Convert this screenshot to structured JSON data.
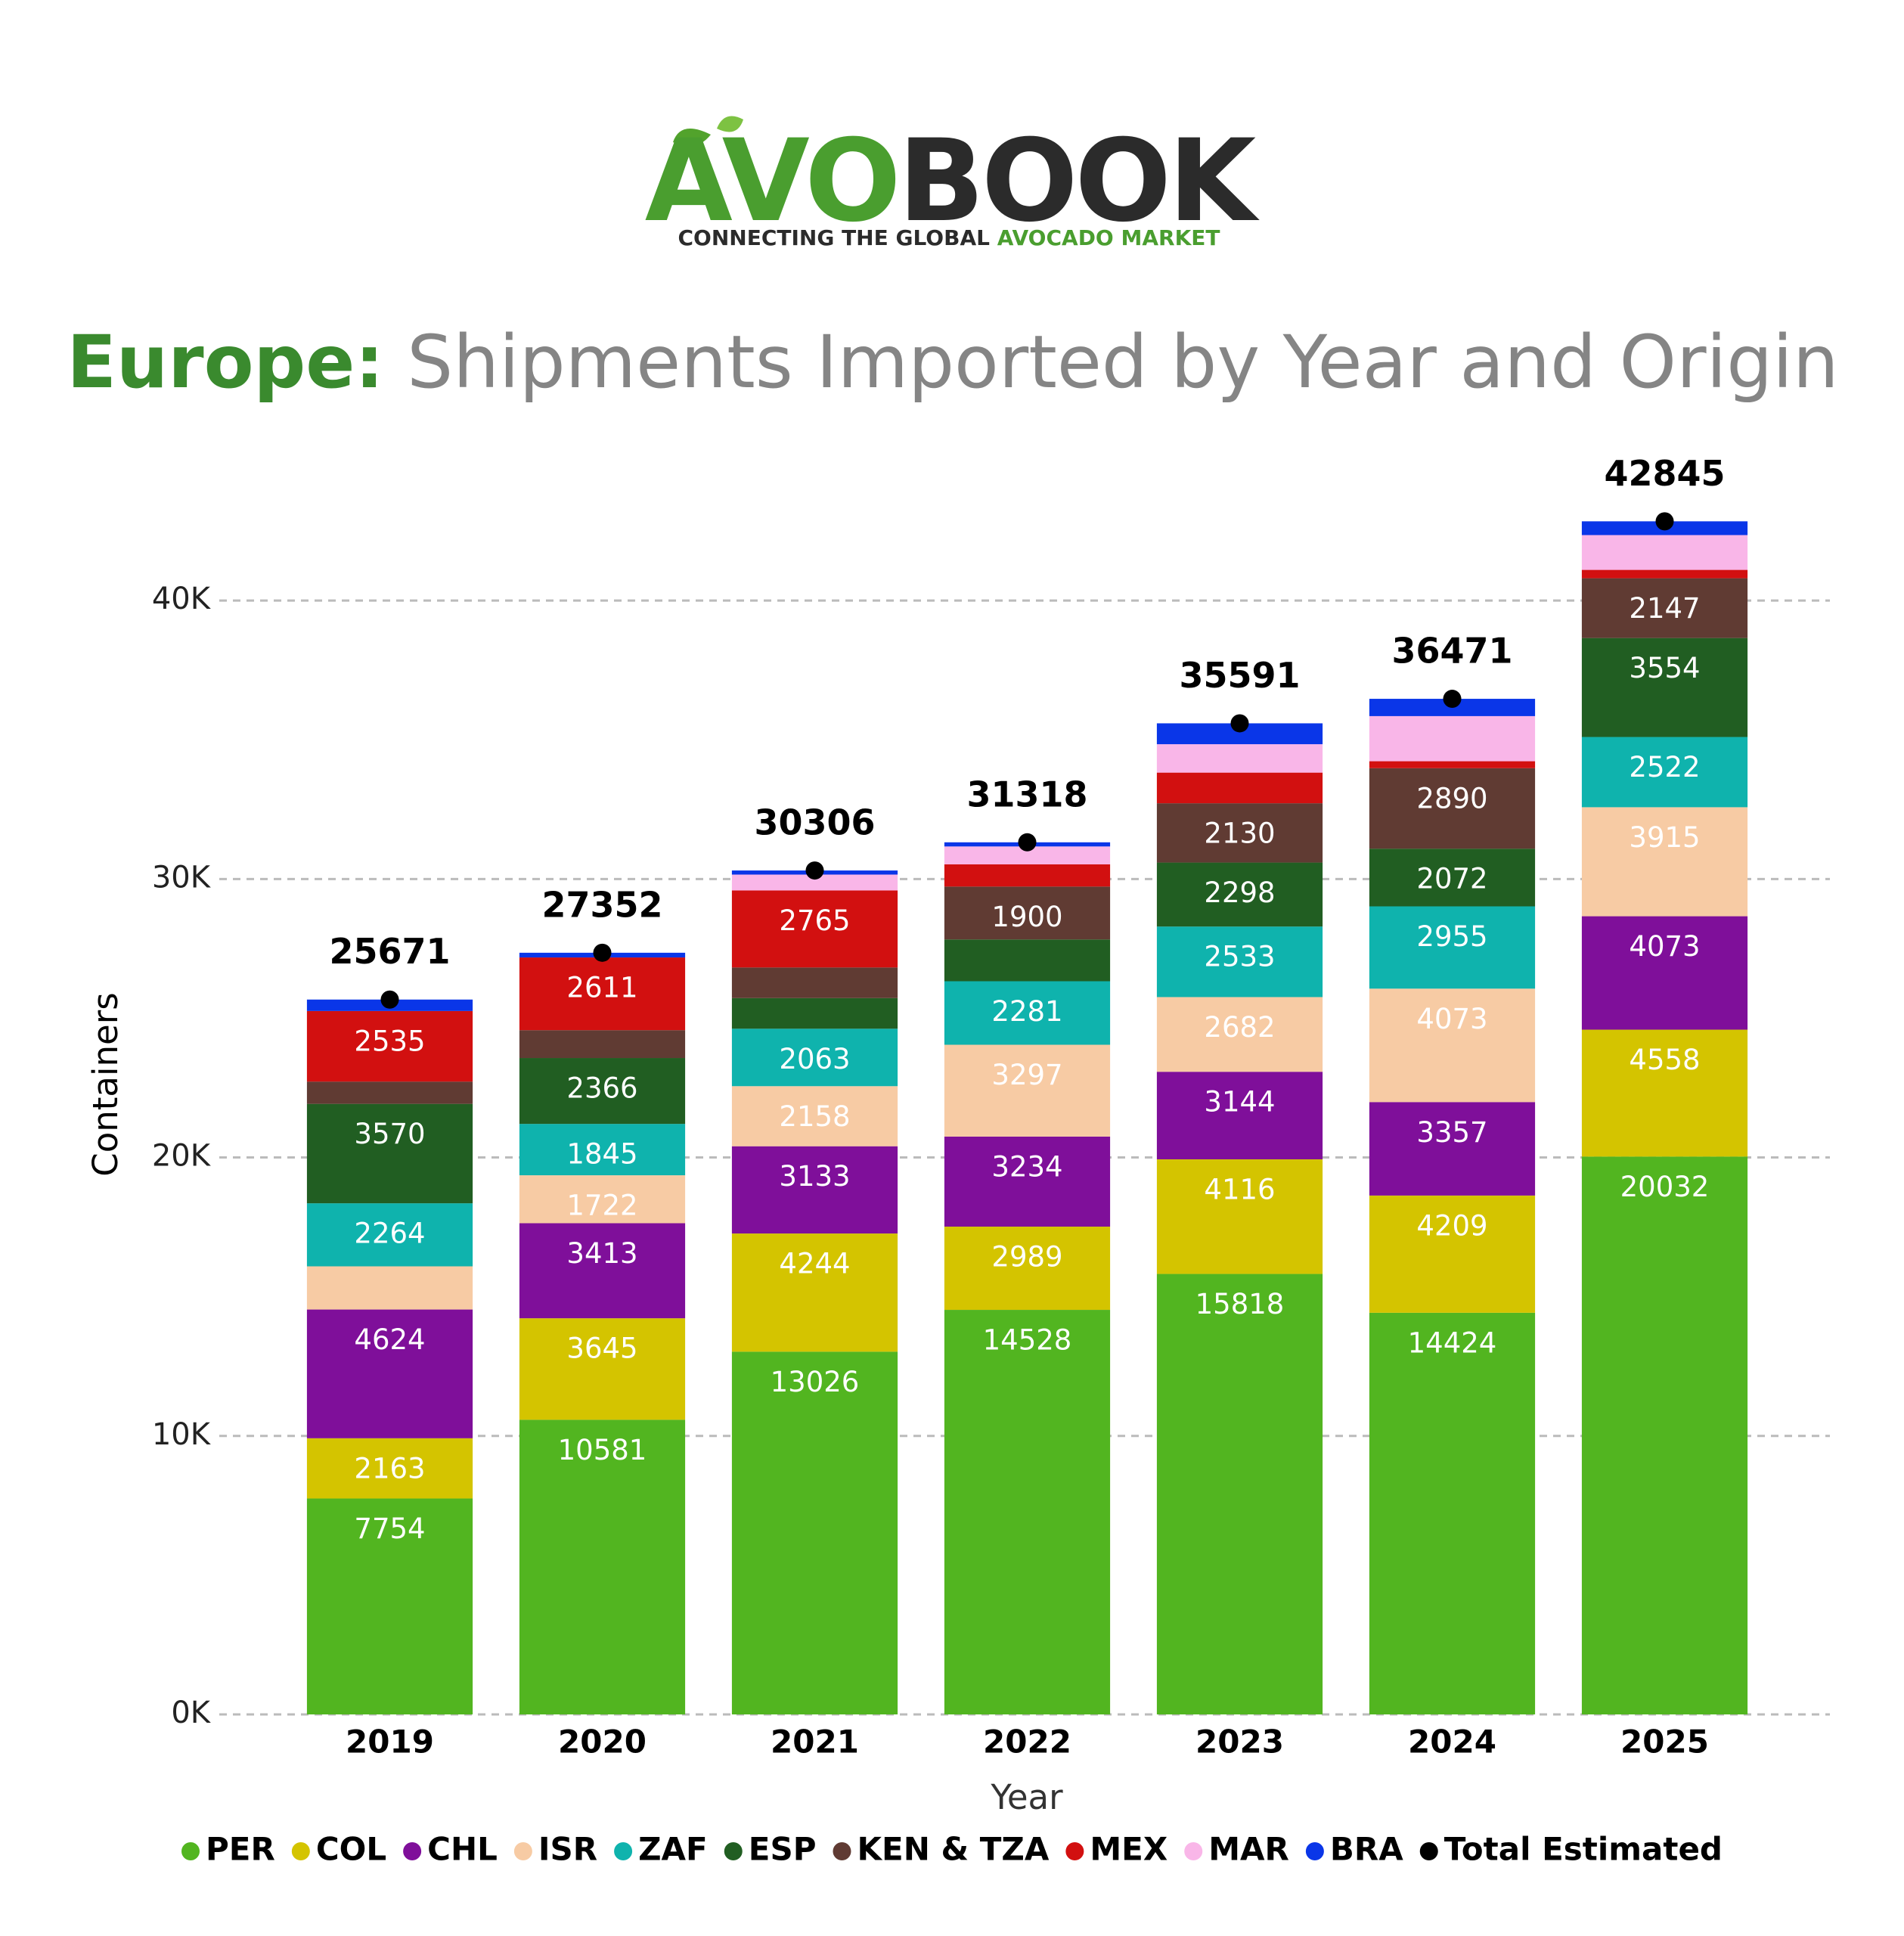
{
  "logo": {
    "brand_a": "AVO",
    "brand_b": "BOOK",
    "tagline_a": "CONNECTING THE GLOBAL",
    "tagline_b": "AVOCADO MARKET"
  },
  "chart_data": {
    "type": "stacked_bar",
    "title": {
      "highlight": "Europe:",
      "text": "Shipments Imported by Year and Origin"
    },
    "x_label": "Year",
    "y_label": "Containers",
    "categories": [
      "2019",
      "2020",
      "2021",
      "2022",
      "2023",
      "2024",
      "2025"
    ],
    "ylim": [
      0,
      45000
    ],
    "yticks": [
      {
        "value": 0,
        "label": "0K"
      },
      {
        "value": 10000,
        "label": "10K"
      },
      {
        "value": 20000,
        "label": "20K"
      },
      {
        "value": 30000,
        "label": "30K"
      },
      {
        "value": 40000,
        "label": "40K"
      }
    ],
    "grid": true,
    "series": [
      {
        "name": "PER",
        "color": "#52b520",
        "values": [
          7754,
          10581,
          13026,
          14528,
          15818,
          14424,
          20032
        ]
      },
      {
        "name": "COL",
        "color": "#d4c400",
        "values": [
          2163,
          3645,
          4244,
          2989,
          4116,
          4209,
          4558
        ]
      },
      {
        "name": "CHL",
        "color": "#7f0f9a",
        "values": [
          4624,
          3413,
          3133,
          3234,
          3144,
          3357,
          4073
        ]
      },
      {
        "name": "ISR",
        "color": "#f7cba4",
        "values": [
          1550,
          1722,
          2158,
          3297,
          2682,
          4073,
          3915
        ]
      },
      {
        "name": "ZAF",
        "color": "#0fb3ad",
        "values": [
          2264,
          1845,
          2063,
          2281,
          2533,
          2955,
          2522
        ]
      },
      {
        "name": "ESP",
        "color": "#215e22",
        "values": [
          3570,
          2366,
          1100,
          1500,
          2298,
          2072,
          3554
        ]
      },
      {
        "name": "KEN & TZA",
        "color": "#603b33",
        "values": [
          800,
          1000,
          1100,
          1900,
          2130,
          2890,
          2147
        ]
      },
      {
        "name": "MEX",
        "color": "#d21010",
        "values": [
          2535,
          2611,
          2765,
          800,
          1100,
          250,
          300
        ]
      },
      {
        "name": "MAR",
        "color": "#f9b6e8",
        "values": [
          0,
          0,
          570,
          640,
          1020,
          1620,
          1250
        ]
      },
      {
        "name": "BRA",
        "color": "#0a36e8",
        "values": [
          411,
          169,
          147,
          149,
          750,
          621,
          494
        ]
      }
    ],
    "totals": {
      "name": "Total Estimated",
      "color": "#000000",
      "values": [
        25671,
        27352,
        30306,
        31318,
        35591,
        36471,
        42845
      ]
    },
    "legend": "bottom"
  }
}
